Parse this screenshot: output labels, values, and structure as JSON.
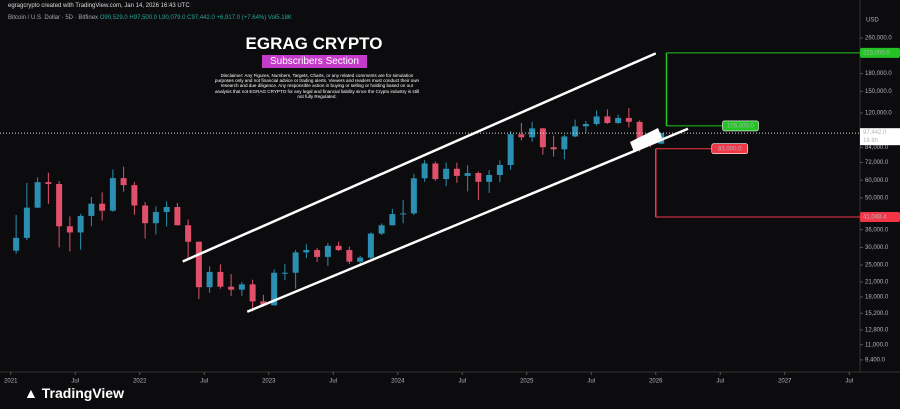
{
  "header": {
    "credit": "egragcrypto created with TradingView.com, Jan 14, 2026 16:43 UTC",
    "symbol": "Bitcoin / U.S. Dollar · 5D · Bitfinex",
    "ohlc": [
      "O90,529.0",
      "H97,500.0",
      "L90,079.0",
      "C97,442.0",
      "+6,917.0 (+7.64%)"
    ],
    "volume": "Vol5.18K"
  },
  "chart_data": {
    "type": "candlestick",
    "title": "EGRAG CRYPTO",
    "subtitle": "Subscribers Section",
    "disclaimer": "Disclaimer: Any Figures, Numbers, Targets, Charts, or any related comments are for simulation purposes only and not financial advice or trading alerts. Viewers and readers must conduct their own research and due diligence. Any responsible action in buying or selling or holding based on our analysis that not EGRAG CRYPTO for any legal and financial liability since the Crypto industry is still not fully Regulated.",
    "currency": "USD",
    "log_scale": true,
    "up_color": "#2a8fb0",
    "down_color": "#e0506a",
    "x": [
      "2021-01",
      "2021-02",
      "2021-03",
      "2021-04",
      "2021-05",
      "2021-06",
      "2021-07",
      "2021-08",
      "2021-09",
      "2021-10",
      "2021-11",
      "2021-12",
      "2022-01",
      "2022-02",
      "2022-03",
      "2022-04",
      "2022-05",
      "2022-06",
      "2022-07",
      "2022-08",
      "2022-09",
      "2022-10",
      "2022-11",
      "2022-12",
      "2023-01",
      "2023-02",
      "2023-03",
      "2023-04",
      "2023-05",
      "2023-06",
      "2023-07",
      "2023-08",
      "2023-09",
      "2023-10",
      "2023-11",
      "2023-12",
      "2024-01",
      "2024-02",
      "2024-03",
      "2024-04",
      "2024-05",
      "2024-06",
      "2024-07",
      "2024-08",
      "2024-09",
      "2024-10",
      "2024-11",
      "2024-12",
      "2025-01",
      "2025-02",
      "2025-03",
      "2025-04",
      "2025-05",
      "2025-06",
      "2025-07",
      "2025-08",
      "2025-09",
      "2025-10",
      "2025-11",
      "2025-12",
      "2026-01"
    ],
    "open": [
      29000,
      33100,
      45200,
      58800,
      57700,
      37300,
      35000,
      41500,
      47100,
      43800,
      61300,
      57000,
      46200,
      38500,
      43200,
      45500,
      37700,
      31800,
      19900,
      23300,
      20000,
      19400,
      20500,
      17200,
      16500,
      23100,
      23100,
      28500,
      29200,
      27200,
      30500,
      29200,
      25900,
      27000,
      34600,
      37700,
      42300,
      42600,
      61200,
      71300,
      60700,
      67500,
      62700,
      64600,
      59000,
      63300,
      70200,
      96400,
      93400,
      102400,
      84300,
      82500,
      94200,
      104600,
      107100,
      115800,
      108200,
      114000,
      109500,
      90400,
      87500
    ],
    "high": [
      41900,
      58300,
      61700,
      64800,
      59500,
      41300,
      42400,
      50500,
      52900,
      67000,
      69000,
      59000,
      47900,
      45800,
      48200,
      47400,
      40000,
      31900,
      24700,
      25200,
      22800,
      21000,
      21500,
      18400,
      23900,
      25300,
      29200,
      31000,
      29800,
      31400,
      31800,
      30200,
      27500,
      35000,
      38400,
      44700,
      48900,
      64000,
      73800,
      72700,
      72000,
      71900,
      70000,
      65600,
      66500,
      73600,
      99600,
      108300,
      109500,
      102700,
      95000,
      95700,
      112000,
      110500,
      123200,
      124400,
      117900,
      126200,
      111200,
      94600,
      97500
    ],
    "low": [
      28100,
      32300,
      45000,
      47000,
      30000,
      28800,
      29300,
      37300,
      39600,
      43300,
      53300,
      42000,
      32900,
      34300,
      37200,
      37700,
      26700,
      17600,
      18800,
      19600,
      18200,
      18200,
      15500,
      16300,
      16500,
      21400,
      19600,
      26900,
      25800,
      24800,
      28900,
      25300,
      24900,
      26600,
      34100,
      37600,
      38500,
      41900,
      59000,
      59600,
      56500,
      58400,
      53500,
      49000,
      52600,
      58900,
      66800,
      90500,
      89200,
      78200,
      76600,
      74500,
      93400,
      98200,
      105300,
      107300,
      107300,
      103500,
      80500,
      84400,
      87100
    ],
    "close": [
      33100,
      45200,
      58800,
      57700,
      37300,
      35000,
      41500,
      47100,
      43800,
      61300,
      57000,
      46200,
      38500,
      43200,
      45500,
      37700,
      31800,
      19900,
      23300,
      20000,
      19400,
      20500,
      17200,
      16500,
      23100,
      23100,
      28500,
      29200,
      27200,
      30500,
      29200,
      25900,
      27000,
      34600,
      37700,
      42300,
      42600,
      61200,
      71300,
      60700,
      67500,
      62700,
      64600,
      59000,
      63300,
      70200,
      96400,
      93400,
      102400,
      84300,
      82500,
      94200,
      104600,
      107100,
      115800,
      108200,
      114000,
      109500,
      90400,
      87500,
      97442
    ],
    "xlim": [
      "2020-12",
      "2027-08"
    ],
    "xticks": [
      {
        "value": "2021-01",
        "label": "2021"
      },
      {
        "value": "2021-07",
        "label": "Jul"
      },
      {
        "value": "2022-01",
        "label": "2022"
      },
      {
        "value": "2022-07",
        "label": "Jul"
      },
      {
        "value": "2023-01",
        "label": "2023"
      },
      {
        "value": "2023-07",
        "label": "Jul"
      },
      {
        "value": "2024-01",
        "label": "2024"
      },
      {
        "value": "2024-07",
        "label": "Jul"
      },
      {
        "value": "2025-01",
        "label": "2025"
      },
      {
        "value": "2025-07",
        "label": "Jul"
      },
      {
        "value": "2026-01",
        "label": "2026"
      },
      {
        "value": "2026-07",
        "label": "Jul"
      },
      {
        "value": "2027-01",
        "label": "2027"
      },
      {
        "value": "2027-07",
        "label": "Jul"
      }
    ],
    "ylim": [
      8300,
      340000
    ],
    "yticks": [
      {
        "value": 260000,
        "label": "260,000.0"
      },
      {
        "value": 180000,
        "label": "180,000.0"
      },
      {
        "value": 150000,
        "label": "150,000.0"
      },
      {
        "value": 120000,
        "label": "120,000.0"
      },
      {
        "value": 84000,
        "label": "84,000.0"
      },
      {
        "value": 72000,
        "label": "72,000.0"
      },
      {
        "value": 60000,
        "label": "60,000.0"
      },
      {
        "value": 50000,
        "label": "50,000.0"
      },
      {
        "value": 36000,
        "label": "36,000.0"
      },
      {
        "value": 30000,
        "label": "30,000.0"
      },
      {
        "value": 25000,
        "label": "25,000.0"
      },
      {
        "value": 21000,
        "label": "21,000.0"
      },
      {
        "value": 18000,
        "label": "18,000.0"
      },
      {
        "value": 15200,
        "label": "15,200.0"
      },
      {
        "value": 12800,
        "label": "12,800.0"
      },
      {
        "value": 11000,
        "label": "11,000.0"
      },
      {
        "value": 9400,
        "label": "9,400.0"
      }
    ],
    "last_price": {
      "value": 97442,
      "label": "97,442.0",
      "countdown": "16 8h"
    },
    "channel": [
      {
        "x": [
          "2022-05",
          "2026-01"
        ],
        "values": [
          25950,
          222000
        ]
      },
      {
        "x": [
          "2022-11",
          "2026-04"
        ],
        "values": [
          15450,
          102000
        ]
      }
    ],
    "targets": [
      {
        "value": 223000,
        "label": "223,000.0",
        "color": "#22c322",
        "x": "2026-02",
        "place": "axis"
      },
      {
        "value": 105000,
        "label": "105,000.0",
        "color": "#22c322",
        "x": "2026-02",
        "place": "inline"
      },
      {
        "value": 83000,
        "label": "83,000.0",
        "color": "#f23645",
        "x": "2026-01",
        "place": "inline"
      },
      {
        "value": 41048.4,
        "label": "41,048.4",
        "color": "#f23645",
        "x": "2026-01",
        "place": "axis"
      }
    ]
  },
  "footer": {
    "brand": "TradingView"
  }
}
